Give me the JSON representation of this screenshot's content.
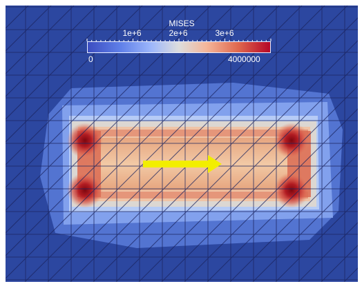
{
  "viewer": {
    "field_name": "MISES",
    "colorbar": {
      "min_label": "0",
      "max_label": "4000000",
      "ticks": [
        "1e+6",
        "2e+6",
        "3e+6"
      ],
      "range": [
        0,
        4000000
      ],
      "colormap": "cool-to-warm",
      "colors": [
        "#3b4cc0",
        "#6f92f3",
        "#aac7fd",
        "#dddddd",
        "#f7b89c",
        "#e7745b",
        "#b40426"
      ]
    },
    "direction_arrow": {
      "color": "#f2ee00",
      "direction": "right"
    },
    "mesh": {
      "element_type": "triangular",
      "line_color": "#1b245f"
    }
  }
}
